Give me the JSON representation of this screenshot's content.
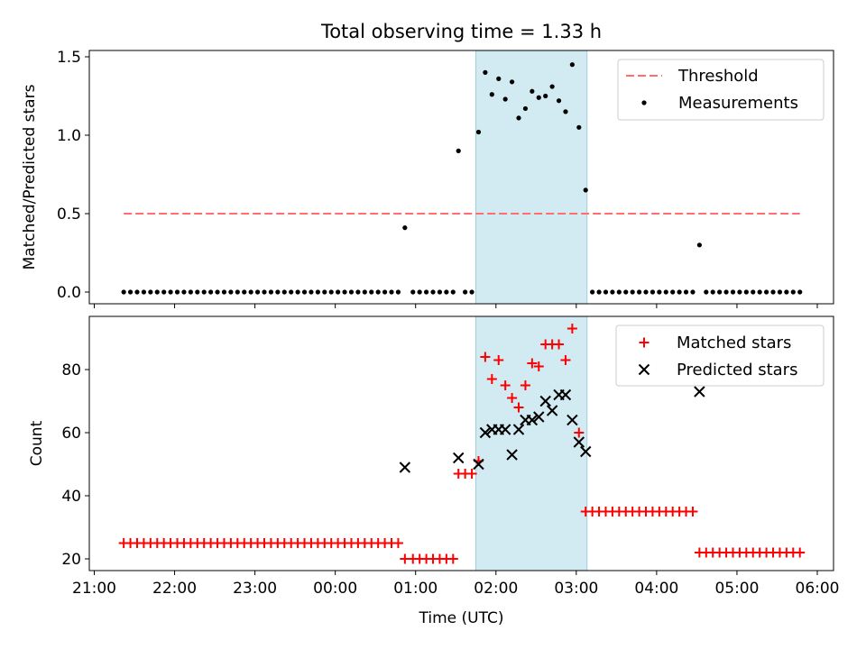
{
  "chart_data": [
    {
      "type": "scatter",
      "title": "Total observing time = 1.33 h",
      "xlabel": "",
      "ylabel": "Matched/Predicted stars",
      "xlim": [
        "21:00",
        "06:00"
      ],
      "ylim": [
        0,
        1.5
      ],
      "yticks": [
        "0.0",
        "0.5",
        "1.0",
        "1.5"
      ],
      "highlight": {
        "start": "01:45",
        "end": "03:08",
        "color": "#add8e6"
      },
      "threshold": {
        "name": "Threshold",
        "value": 0.5,
        "x_start": "21:22",
        "x_end": "05:47",
        "color": "#ff6e6e"
      },
      "series": [
        {
          "name": "Measurements",
          "color": "#000000",
          "points": [
            {
              "x": "21:22",
              "y": 0
            },
            {
              "x": "21:27",
              "y": 0
            },
            {
              "x": "21:32",
              "y": 0
            },
            {
              "x": "21:37",
              "y": 0
            },
            {
              "x": "21:42",
              "y": 0
            },
            {
              "x": "21:47",
              "y": 0
            },
            {
              "x": "21:52",
              "y": 0
            },
            {
              "x": "21:57",
              "y": 0
            },
            {
              "x": "22:02",
              "y": 0
            },
            {
              "x": "22:07",
              "y": 0
            },
            {
              "x": "22:12",
              "y": 0
            },
            {
              "x": "22:17",
              "y": 0
            },
            {
              "x": "22:22",
              "y": 0
            },
            {
              "x": "22:27",
              "y": 0
            },
            {
              "x": "22:32",
              "y": 0
            },
            {
              "x": "22:37",
              "y": 0
            },
            {
              "x": "22:42",
              "y": 0
            },
            {
              "x": "22:47",
              "y": 0
            },
            {
              "x": "22:52",
              "y": 0
            },
            {
              "x": "22:57",
              "y": 0
            },
            {
              "x": "23:02",
              "y": 0
            },
            {
              "x": "23:07",
              "y": 0
            },
            {
              "x": "23:12",
              "y": 0
            },
            {
              "x": "23:17",
              "y": 0
            },
            {
              "x": "23:22",
              "y": 0
            },
            {
              "x": "23:27",
              "y": 0
            },
            {
              "x": "23:32",
              "y": 0
            },
            {
              "x": "23:37",
              "y": 0
            },
            {
              "x": "23:42",
              "y": 0
            },
            {
              "x": "23:47",
              "y": 0
            },
            {
              "x": "23:52",
              "y": 0
            },
            {
              "x": "23:57",
              "y": 0
            },
            {
              "x": "00:02",
              "y": 0
            },
            {
              "x": "00:07",
              "y": 0
            },
            {
              "x": "00:12",
              "y": 0
            },
            {
              "x": "00:17",
              "y": 0
            },
            {
              "x": "00:22",
              "y": 0
            },
            {
              "x": "00:27",
              "y": 0
            },
            {
              "x": "00:32",
              "y": 0
            },
            {
              "x": "00:37",
              "y": 0
            },
            {
              "x": "00:42",
              "y": 0
            },
            {
              "x": "00:47",
              "y": 0
            },
            {
              "x": "00:52",
              "y": 0.41
            },
            {
              "x": "00:58",
              "y": 0
            },
            {
              "x": "01:03",
              "y": 0
            },
            {
              "x": "01:08",
              "y": 0
            },
            {
              "x": "01:13",
              "y": 0
            },
            {
              "x": "01:18",
              "y": 0
            },
            {
              "x": "01:23",
              "y": 0
            },
            {
              "x": "01:28",
              "y": 0
            },
            {
              "x": "01:32",
              "y": 0.9
            },
            {
              "x": "01:37",
              "y": 0
            },
            {
              "x": "01:42",
              "y": 0
            },
            {
              "x": "01:47",
              "y": 1.02
            },
            {
              "x": "01:52",
              "y": 1.4
            },
            {
              "x": "01:57",
              "y": 1.26
            },
            {
              "x": "02:02",
              "y": 1.36
            },
            {
              "x": "02:07",
              "y": 1.23
            },
            {
              "x": "02:12",
              "y": 1.34
            },
            {
              "x": "02:17",
              "y": 1.11
            },
            {
              "x": "02:22",
              "y": 1.17
            },
            {
              "x": "02:27",
              "y": 1.28
            },
            {
              "x": "02:32",
              "y": 1.24
            },
            {
              "x": "02:37",
              "y": 1.25
            },
            {
              "x": "02:42",
              "y": 1.31
            },
            {
              "x": "02:47",
              "y": 1.22
            },
            {
              "x": "02:52",
              "y": 1.15
            },
            {
              "x": "02:57",
              "y": 1.45
            },
            {
              "x": "03:02",
              "y": 1.05
            },
            {
              "x": "03:07",
              "y": 0.65
            },
            {
              "x": "03:12",
              "y": 0
            },
            {
              "x": "03:17",
              "y": 0
            },
            {
              "x": "03:22",
              "y": 0
            },
            {
              "x": "03:27",
              "y": 0
            },
            {
              "x": "03:32",
              "y": 0
            },
            {
              "x": "03:37",
              "y": 0
            },
            {
              "x": "03:42",
              "y": 0
            },
            {
              "x": "03:47",
              "y": 0
            },
            {
              "x": "03:52",
              "y": 0
            },
            {
              "x": "03:57",
              "y": 0
            },
            {
              "x": "04:02",
              "y": 0
            },
            {
              "x": "04:07",
              "y": 0
            },
            {
              "x": "04:12",
              "y": 0
            },
            {
              "x": "04:17",
              "y": 0
            },
            {
              "x": "04:22",
              "y": 0
            },
            {
              "x": "04:27",
              "y": 0
            },
            {
              "x": "04:32",
              "y": 0.3
            },
            {
              "x": "04:37",
              "y": 0
            },
            {
              "x": "04:42",
              "y": 0
            },
            {
              "x": "04:47",
              "y": 0
            },
            {
              "x": "04:52",
              "y": 0
            },
            {
              "x": "04:57",
              "y": 0
            },
            {
              "x": "05:02",
              "y": 0
            },
            {
              "x": "05:07",
              "y": 0
            },
            {
              "x": "05:12",
              "y": 0
            },
            {
              "x": "05:17",
              "y": 0
            },
            {
              "x": "05:22",
              "y": 0
            },
            {
              "x": "05:27",
              "y": 0
            },
            {
              "x": "05:32",
              "y": 0
            },
            {
              "x": "05:37",
              "y": 0
            },
            {
              "x": "05:42",
              "y": 0
            },
            {
              "x": "05:47",
              "y": 0
            }
          ]
        }
      ],
      "legend_position": "top-right",
      "grid": false
    },
    {
      "type": "scatter",
      "title": "",
      "xlabel": "Time (UTC)",
      "ylabel": "Count",
      "xlim": [
        "21:00",
        "06:00"
      ],
      "ylim": [
        16,
        96
      ],
      "xticks": [
        "21:00",
        "22:00",
        "23:00",
        "00:00",
        "01:00",
        "02:00",
        "03:00",
        "04:00",
        "05:00",
        "06:00"
      ],
      "yticks": [
        "20",
        "40",
        "60",
        "80"
      ],
      "highlight": {
        "start": "01:45",
        "end": "03:08",
        "color": "#add8e6"
      },
      "series": [
        {
          "name": "Matched stars",
          "marker": "plus",
          "color": "#ff0000",
          "points": [
            {
              "x": "21:22",
              "y": 25
            },
            {
              "x": "21:27",
              "y": 25
            },
            {
              "x": "21:32",
              "y": 25
            },
            {
              "x": "21:37",
              "y": 25
            },
            {
              "x": "21:42",
              "y": 25
            },
            {
              "x": "21:47",
              "y": 25
            },
            {
              "x": "21:52",
              "y": 25
            },
            {
              "x": "21:57",
              "y": 25
            },
            {
              "x": "22:02",
              "y": 25
            },
            {
              "x": "22:07",
              "y": 25
            },
            {
              "x": "22:12",
              "y": 25
            },
            {
              "x": "22:17",
              "y": 25
            },
            {
              "x": "22:22",
              "y": 25
            },
            {
              "x": "22:27",
              "y": 25
            },
            {
              "x": "22:32",
              "y": 25
            },
            {
              "x": "22:37",
              "y": 25
            },
            {
              "x": "22:42",
              "y": 25
            },
            {
              "x": "22:47",
              "y": 25
            },
            {
              "x": "22:52",
              "y": 25
            },
            {
              "x": "22:57",
              "y": 25
            },
            {
              "x": "23:02",
              "y": 25
            },
            {
              "x": "23:07",
              "y": 25
            },
            {
              "x": "23:12",
              "y": 25
            },
            {
              "x": "23:17",
              "y": 25
            },
            {
              "x": "23:22",
              "y": 25
            },
            {
              "x": "23:27",
              "y": 25
            },
            {
              "x": "23:32",
              "y": 25
            },
            {
              "x": "23:37",
              "y": 25
            },
            {
              "x": "23:42",
              "y": 25
            },
            {
              "x": "23:47",
              "y": 25
            },
            {
              "x": "23:52",
              "y": 25
            },
            {
              "x": "23:57",
              "y": 25
            },
            {
              "x": "00:02",
              "y": 25
            },
            {
              "x": "00:07",
              "y": 25
            },
            {
              "x": "00:12",
              "y": 25
            },
            {
              "x": "00:17",
              "y": 25
            },
            {
              "x": "00:22",
              "y": 25
            },
            {
              "x": "00:27",
              "y": 25
            },
            {
              "x": "00:32",
              "y": 25
            },
            {
              "x": "00:37",
              "y": 25
            },
            {
              "x": "00:42",
              "y": 25
            },
            {
              "x": "00:47",
              "y": 25
            },
            {
              "x": "00:52",
              "y": 20
            },
            {
              "x": "00:58",
              "y": 20
            },
            {
              "x": "01:03",
              "y": 20
            },
            {
              "x": "01:08",
              "y": 20
            },
            {
              "x": "01:13",
              "y": 20
            },
            {
              "x": "01:18",
              "y": 20
            },
            {
              "x": "01:23",
              "y": 20
            },
            {
              "x": "01:28",
              "y": 20
            },
            {
              "x": "01:32",
              "y": 47
            },
            {
              "x": "01:37",
              "y": 47
            },
            {
              "x": "01:42",
              "y": 47
            },
            {
              "x": "01:47",
              "y": 51
            },
            {
              "x": "01:52",
              "y": 84
            },
            {
              "x": "01:57",
              "y": 77
            },
            {
              "x": "02:02",
              "y": 83
            },
            {
              "x": "02:07",
              "y": 75
            },
            {
              "x": "02:12",
              "y": 71
            },
            {
              "x": "02:17",
              "y": 68
            },
            {
              "x": "02:22",
              "y": 75
            },
            {
              "x": "02:27",
              "y": 82
            },
            {
              "x": "02:32",
              "y": 81
            },
            {
              "x": "02:37",
              "y": 88
            },
            {
              "x": "02:42",
              "y": 88
            },
            {
              "x": "02:47",
              "y": 88
            },
            {
              "x": "02:52",
              "y": 83
            },
            {
              "x": "02:57",
              "y": 93
            },
            {
              "x": "03:02",
              "y": 60
            },
            {
              "x": "03:07",
              "y": 35
            },
            {
              "x": "03:12",
              "y": 35
            },
            {
              "x": "03:17",
              "y": 35
            },
            {
              "x": "03:22",
              "y": 35
            },
            {
              "x": "03:27",
              "y": 35
            },
            {
              "x": "03:32",
              "y": 35
            },
            {
              "x": "03:37",
              "y": 35
            },
            {
              "x": "03:42",
              "y": 35
            },
            {
              "x": "03:47",
              "y": 35
            },
            {
              "x": "03:52",
              "y": 35
            },
            {
              "x": "03:57",
              "y": 35
            },
            {
              "x": "04:02",
              "y": 35
            },
            {
              "x": "04:07",
              "y": 35
            },
            {
              "x": "04:12",
              "y": 35
            },
            {
              "x": "04:17",
              "y": 35
            },
            {
              "x": "04:22",
              "y": 35
            },
            {
              "x": "04:27",
              "y": 35
            },
            {
              "x": "04:32",
              "y": 22
            },
            {
              "x": "04:37",
              "y": 22
            },
            {
              "x": "04:42",
              "y": 22
            },
            {
              "x": "04:47",
              "y": 22
            },
            {
              "x": "04:52",
              "y": 22
            },
            {
              "x": "04:57",
              "y": 22
            },
            {
              "x": "05:02",
              "y": 22
            },
            {
              "x": "05:07",
              "y": 22
            },
            {
              "x": "05:12",
              "y": 22
            },
            {
              "x": "05:17",
              "y": 22
            },
            {
              "x": "05:22",
              "y": 22
            },
            {
              "x": "05:27",
              "y": 22
            },
            {
              "x": "05:32",
              "y": 22
            },
            {
              "x": "05:37",
              "y": 22
            },
            {
              "x": "05:42",
              "y": 22
            },
            {
              "x": "05:47",
              "y": 22
            }
          ]
        },
        {
          "name": "Predicted stars",
          "marker": "x",
          "color": "#000000",
          "points": [
            {
              "x": "00:52",
              "y": 49
            },
            {
              "x": "01:32",
              "y": 52
            },
            {
              "x": "01:47",
              "y": 50
            },
            {
              "x": "01:52",
              "y": 60
            },
            {
              "x": "01:57",
              "y": 61
            },
            {
              "x": "02:02",
              "y": 61
            },
            {
              "x": "02:07",
              "y": 61
            },
            {
              "x": "02:12",
              "y": 53
            },
            {
              "x": "02:17",
              "y": 61
            },
            {
              "x": "02:22",
              "y": 64
            },
            {
              "x": "02:27",
              "y": 64
            },
            {
              "x": "02:32",
              "y": 65
            },
            {
              "x": "02:37",
              "y": 70
            },
            {
              "x": "02:42",
              "y": 67
            },
            {
              "x": "02:47",
              "y": 72
            },
            {
              "x": "02:52",
              "y": 72
            },
            {
              "x": "02:57",
              "y": 64
            },
            {
              "x": "03:02",
              "y": 57
            },
            {
              "x": "03:07",
              "y": 54
            },
            {
              "x": "04:32",
              "y": 73
            }
          ]
        }
      ],
      "legend_position": "top-right",
      "grid": false
    }
  ]
}
